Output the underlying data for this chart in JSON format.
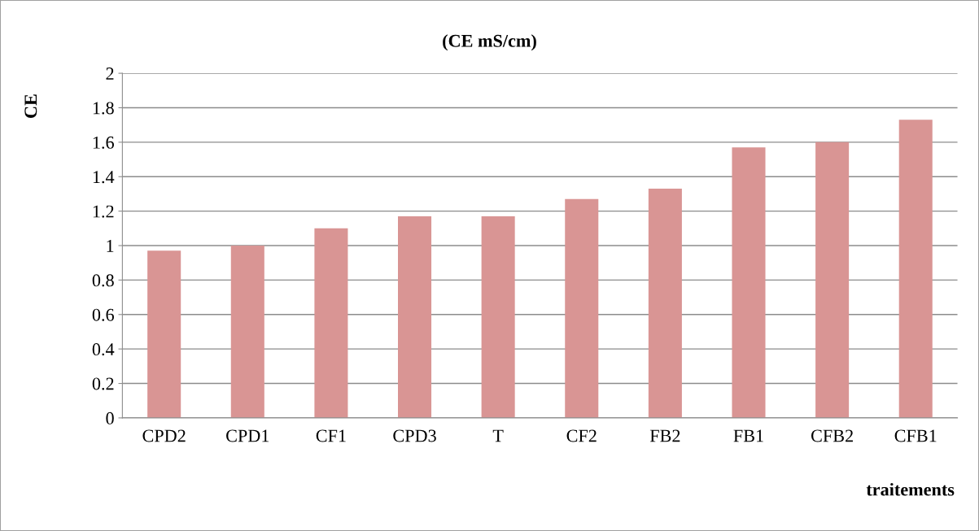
{
  "chart_data": {
    "type": "bar",
    "title": "(CE mS/cm)",
    "xlabel": "traitements",
    "ylabel": "CE",
    "categories": [
      "CPD2",
      "CPD1",
      "CF1",
      "CPD3",
      "T",
      "CF2",
      "FB2",
      "FB1",
      "CFB2",
      "CFB1"
    ],
    "values": [
      0.97,
      1.0,
      1.1,
      1.17,
      1.17,
      1.27,
      1.33,
      1.57,
      1.6,
      1.73
    ],
    "color": "#d99594",
    "ylim": [
      0,
      2
    ],
    "yticks": [
      0,
      {
        "value": 0.2,
        "label": "0.2"
      },
      {
        "value": 0.4,
        "label": "0.4"
      },
      {
        "value": 0.6,
        "label": "0.6"
      },
      {
        "value": 0.8,
        "label": "0.8"
      },
      1,
      {
        "value": 1.2,
        "label": "1.2"
      },
      {
        "value": 1.4,
        "label": "1.4"
      },
      {
        "value": 1.6,
        "label": "1.6"
      },
      {
        "value": 1.8,
        "label": "1.8"
      },
      2
    ],
    "grid": "y",
    "legend": false
  }
}
